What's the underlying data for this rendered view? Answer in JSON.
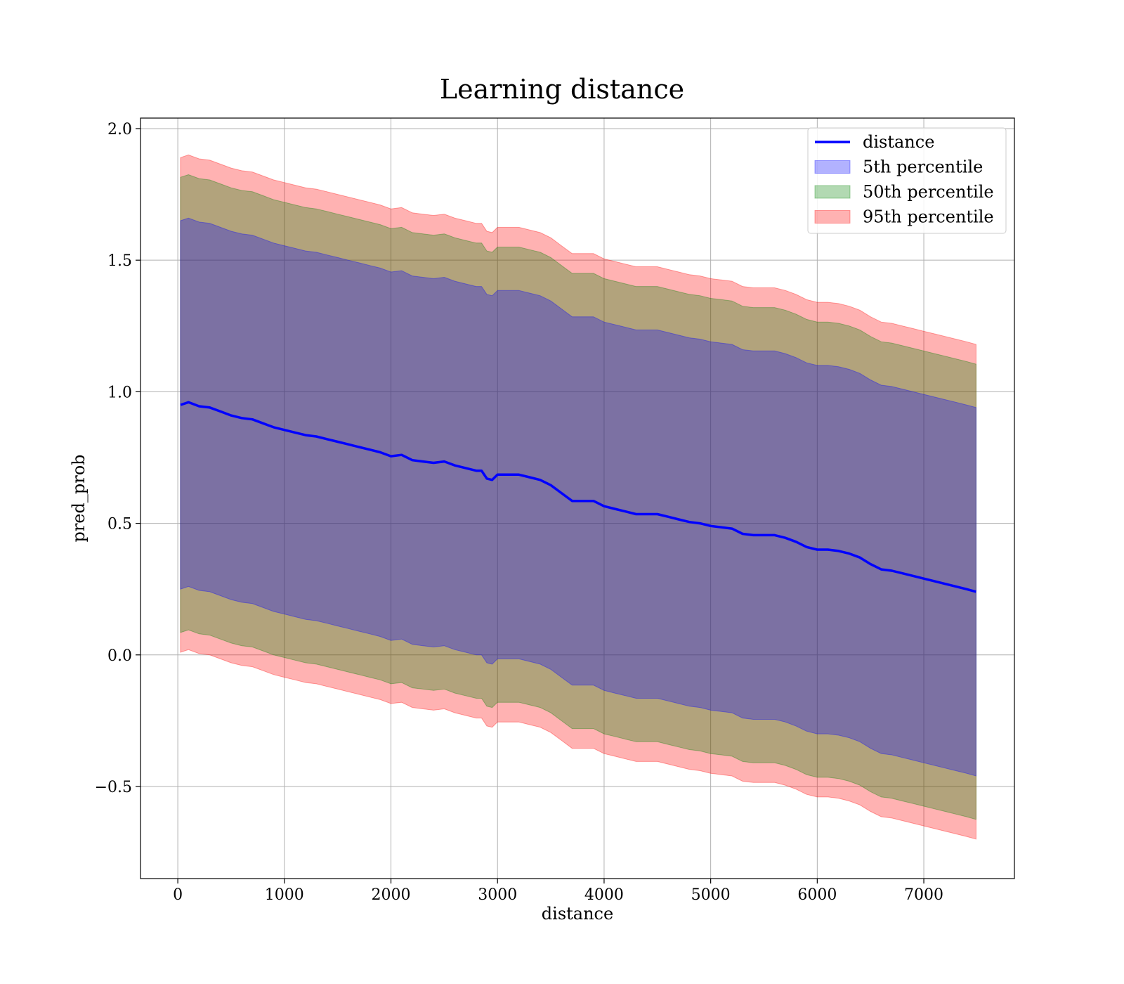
{
  "chart_data": {
    "type": "line",
    "title": "Learning distance",
    "xlabel": "distance",
    "ylabel": "pred_prob",
    "xlim": [
      -350,
      7850
    ],
    "ylim": [
      -0.85,
      2.04
    ],
    "xticks": [
      0,
      1000,
      2000,
      3000,
      4000,
      5000,
      6000,
      7000
    ],
    "yticks": [
      -0.5,
      0.0,
      0.5,
      1.0,
      1.5,
      2.0
    ],
    "xtick_labels": [
      "0",
      "1000",
      "2000",
      "3000",
      "4000",
      "5000",
      "6000",
      "7000"
    ],
    "ytick_labels": [
      "−0.5",
      "0.0",
      "0.5",
      "1.0",
      "1.5",
      "2.0"
    ],
    "grid": true,
    "legend_position": "top-right",
    "x": [
      25,
      100,
      200,
      300,
      400,
      500,
      600,
      700,
      800,
      900,
      1000,
      1100,
      1200,
      1300,
      1400,
      1500,
      1600,
      1700,
      1800,
      1900,
      2000,
      2100,
      2200,
      2300,
      2400,
      2500,
      2600,
      2700,
      2800,
      2850,
      2900,
      2950,
      3000,
      3100,
      3200,
      3300,
      3400,
      3500,
      3600,
      3700,
      3800,
      3900,
      4000,
      4100,
      4200,
      4300,
      4400,
      4500,
      4600,
      4700,
      4800,
      4900,
      5000,
      5100,
      5200,
      5300,
      5400,
      5500,
      5600,
      5700,
      5800,
      5900,
      6000,
      6100,
      6200,
      6300,
      6400,
      6500,
      6600,
      6700,
      6800,
      6900,
      7000,
      7100,
      7200,
      7300,
      7400,
      7490
    ],
    "series": [
      {
        "name": "distance",
        "kind": "line",
        "color": "#0000ff",
        "values": [
          0.95,
          0.96,
          0.945,
          0.94,
          0.925,
          0.91,
          0.9,
          0.895,
          0.88,
          0.865,
          0.855,
          0.845,
          0.835,
          0.83,
          0.82,
          0.81,
          0.8,
          0.79,
          0.78,
          0.77,
          0.755,
          0.76,
          0.74,
          0.735,
          0.73,
          0.735,
          0.72,
          0.71,
          0.7,
          0.7,
          0.67,
          0.665,
          0.685,
          0.685,
          0.685,
          0.675,
          0.665,
          0.645,
          0.615,
          0.585,
          0.585,
          0.585,
          0.565,
          0.555,
          0.545,
          0.535,
          0.535,
          0.535,
          0.525,
          0.515,
          0.505,
          0.5,
          0.49,
          0.485,
          0.48,
          0.46,
          0.455,
          0.455,
          0.455,
          0.445,
          0.43,
          0.41,
          0.4,
          0.4,
          0.395,
          0.385,
          0.37,
          0.345,
          0.325,
          0.32,
          0.31,
          0.3,
          0.29,
          0.28,
          0.27,
          0.26,
          0.25,
          0.24
        ]
      },
      {
        "name": "5th percentile",
        "kind": "band",
        "color": "#0000ff",
        "halfwidth": 0.7
      },
      {
        "name": "50th percentile",
        "kind": "band",
        "color": "#008000",
        "halfwidth": 0.865
      },
      {
        "name": "95th percentile",
        "kind": "band",
        "color": "#ff0000",
        "halfwidth": 0.94
      }
    ]
  }
}
